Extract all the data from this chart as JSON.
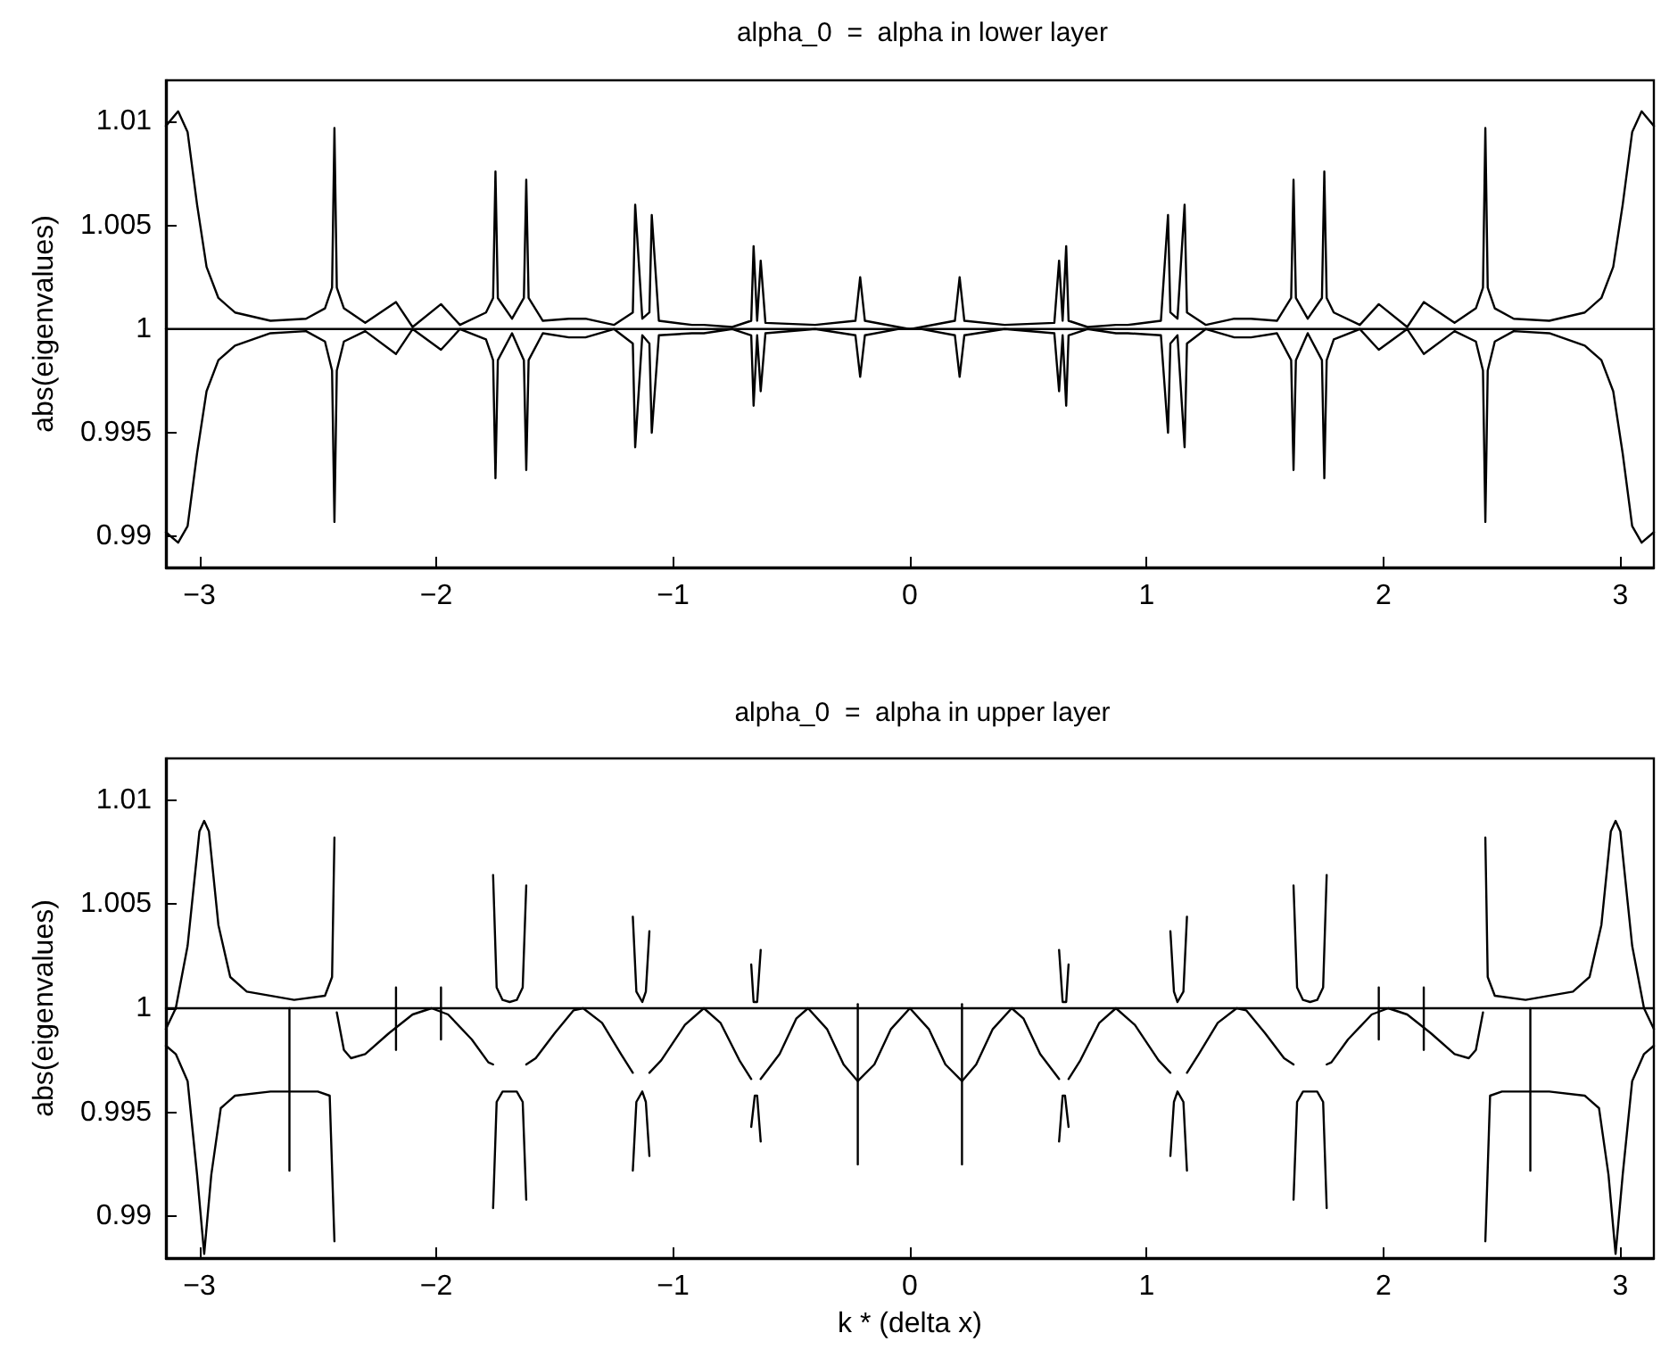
{
  "chart_data": [
    {
      "type": "line",
      "title": "alpha_0  =  alpha in lower layer",
      "ylabel": "abs(eigenvalues)",
      "xlim": [
        -3.1416,
        3.1416
      ],
      "xticks": [
        -3,
        -2,
        -1,
        0,
        1,
        2,
        3
      ],
      "ylim": [
        0.9885,
        1.012
      ],
      "yticks": [
        0.99,
        0.995,
        1,
        1.005,
        1.01
      ],
      "grid": false,
      "marker": "none",
      "line_style": "solid",
      "x": [
        -3.1416,
        -3.09,
        -3.05,
        -3.01,
        -2.97,
        -2.92,
        -2.85,
        -2.7,
        -2.55,
        -2.47,
        -2.44,
        -2.43,
        -2.42,
        -2.39,
        -2.3,
        -2.17,
        -2.1,
        -1.98,
        -1.9,
        -1.79,
        -1.76,
        -1.75,
        -1.74,
        -1.68,
        -1.63,
        -1.62,
        -1.61,
        -1.55,
        -1.44,
        -1.37,
        -1.25,
        -1.17,
        -1.16,
        -1.13,
        -1.1,
        -1.09,
        -1.06,
        -0.92,
        -0.87,
        -0.75,
        -0.67,
        -0.66,
        -0.645,
        -0.63,
        -0.61,
        -0.4,
        -0.23,
        -0.21,
        -0.19,
        -0.05,
        0,
        0.05,
        0.19,
        0.21,
        0.23,
        0.4,
        0.61,
        0.63,
        0.645,
        0.66,
        0.67,
        0.75,
        0.87,
        0.92,
        1.06,
        1.09,
        1.1,
        1.13,
        1.16,
        1.17,
        1.25,
        1.37,
        1.44,
        1.55,
        1.61,
        1.62,
        1.63,
        1.68,
        1.74,
        1.75,
        1.76,
        1.79,
        1.9,
        1.98,
        2.1,
        2.17,
        2.3,
        2.39,
        2.42,
        2.43,
        2.44,
        2.47,
        2.55,
        2.7,
        2.85,
        2.92,
        2.97,
        3.01,
        3.05,
        3.09,
        3.1416
      ],
      "series": [
        {
          "color": "#000000",
          "values": [
            1.0098,
            1.0105,
            1.0095,
            1.006,
            1.003,
            1.0015,
            1.0008,
            1.0004,
            1.0005,
            1.001,
            1.002,
            1.0097,
            1.002,
            1.001,
            1.0003,
            1.0013,
            1.0001,
            1.0012,
            1.0002,
            1.0008,
            1.0015,
            1.0076,
            1.0015,
            1.0005,
            1.0015,
            1.0072,
            1.0015,
            1.0004,
            1.0005,
            1.0005,
            1.0002,
            1.0008,
            1.006,
            1.0005,
            1.0008,
            1.0055,
            1.0004,
            1.0002,
            1.0002,
            1.0001,
            1.0004,
            1.004,
            1.0004,
            1.0033,
            1.0003,
            1.0002,
            1.0004,
            1.0025,
            1.0004,
            1.0001,
            1.0,
            1.0001,
            1.0004,
            1.0025,
            1.0004,
            1.0002,
            1.0003,
            1.0033,
            1.0004,
            1.004,
            1.0004,
            1.0001,
            1.0002,
            1.0002,
            1.0004,
            1.0055,
            1.0008,
            1.0005,
            1.006,
            1.0008,
            1.0002,
            1.0005,
            1.0005,
            1.0004,
            1.0015,
            1.0072,
            1.0015,
            1.0005,
            1.0015,
            1.0076,
            1.0015,
            1.0008,
            1.0002,
            1.0012,
            1.0001,
            1.0013,
            1.0003,
            1.001,
            1.002,
            1.0097,
            1.002,
            1.001,
            1.0005,
            1.0004,
            1.0008,
            1.0015,
            1.003,
            1.006,
            1.0095,
            1.0105,
            1.0098
          ]
        },
        {
          "color": "#000000",
          "values": [
            0.9902,
            0.9897,
            0.9905,
            0.994,
            0.997,
            0.9985,
            0.9992,
            0.9998,
            0.9999,
            0.9994,
            0.998,
            0.9907,
            0.998,
            0.9994,
            0.9999,
            0.9988,
            1.0,
            0.999,
            1.0,
            0.9995,
            0.9985,
            0.9928,
            0.9985,
            0.9998,
            0.9985,
            0.9932,
            0.9985,
            0.9998,
            0.9996,
            0.9996,
            1.0,
            0.9993,
            0.9943,
            0.9997,
            0.9993,
            0.995,
            0.9997,
            0.9998,
            0.9998,
            1.0,
            0.9997,
            0.9963,
            0.9997,
            0.997,
            0.9998,
            1.0,
            0.9997,
            0.9977,
            0.9997,
            1.0,
            1.0,
            1.0,
            0.9997,
            0.9977,
            0.9997,
            1.0,
            0.9998,
            0.997,
            0.9997,
            0.9963,
            0.9997,
            1.0,
            0.9998,
            0.9998,
            0.9997,
            0.995,
            0.9993,
            0.9997,
            0.9943,
            0.9993,
            1.0,
            0.9996,
            0.9996,
            0.9998,
            0.9985,
            0.9932,
            0.9985,
            0.9998,
            0.9985,
            0.9928,
            0.9985,
            0.9995,
            1.0,
            0.999,
            1.0,
            0.9988,
            0.9999,
            0.9994,
            0.998,
            0.9907,
            0.998,
            0.9994,
            0.9999,
            0.9998,
            0.9992,
            0.9985,
            0.997,
            0.994,
            0.9905,
            0.9897,
            0.9902
          ]
        },
        {
          "color": "#000000",
          "x": [
            -3.1416,
            3.1416
          ],
          "values": [
            1,
            1
          ]
        }
      ]
    },
    {
      "type": "line",
      "title": "alpha_0  =  alpha in upper layer",
      "xlabel": "k * (delta x)",
      "ylabel": "abs(eigenvalues)",
      "xlim": [
        -3.1416,
        3.1416
      ],
      "xticks": [
        -3,
        -2,
        -1,
        0,
        1,
        2,
        3
      ],
      "ylim": [
        0.988,
        1.012
      ],
      "yticks": [
        0.99,
        0.995,
        1,
        1.005,
        1.01
      ],
      "grid": false,
      "marker": "none",
      "line_style": "solid",
      "series": [
        {
          "color": "#000000",
          "x": [
            -3.1416,
            -3.1,
            -3.05,
            -3.0,
            -2.98,
            -2.96,
            -2.92,
            -2.87,
            -2.8,
            -2.6,
            -2.47,
            -2.44,
            -2.43,
            -2.42,
            -1.76,
            -1.745,
            -1.72,
            -1.69,
            -1.66,
            -1.635,
            -1.62,
            -1.61,
            -1.17,
            -1.155,
            -1.13,
            -1.115,
            -1.1,
            -1.09,
            -0.67,
            -0.66,
            -0.645,
            -0.63,
            -0.62,
            0.62,
            0.63,
            0.645,
            0.66,
            0.67,
            1.09,
            1.1,
            1.115,
            1.13,
            1.155,
            1.17,
            1.61,
            1.62,
            1.635,
            1.66,
            1.69,
            1.72,
            1.745,
            1.76,
            2.42,
            2.43,
            2.44,
            2.47,
            2.6,
            2.8,
            2.87,
            2.92,
            2.96,
            2.98,
            3.0,
            3.05,
            3.1,
            3.1416
          ],
          "values": [
            0.999,
            1.0,
            1.003,
            1.0085,
            1.009,
            1.0085,
            1.004,
            1.0015,
            1.0008,
            1.0004,
            1.0006,
            1.0015,
            1.0082,
            null,
            1.0064,
            1.001,
            1.0004,
            1.0003,
            1.0004,
            1.001,
            1.0059,
            null,
            1.0044,
            1.0008,
            1.0003,
            1.0008,
            1.0037,
            null,
            1.0021,
            1.0003,
            1.0003,
            1.0028,
            null,
            null,
            1.0028,
            1.0003,
            1.0003,
            1.0021,
            null,
            1.0037,
            1.0008,
            1.0003,
            1.0008,
            1.0044,
            null,
            1.0059,
            1.001,
            1.0004,
            1.0003,
            1.0004,
            1.001,
            1.0064,
            null,
            1.0082,
            1.0015,
            1.0006,
            1.0004,
            1.0008,
            1.0015,
            1.004,
            1.0085,
            1.009,
            1.0085,
            1.003,
            1.0,
            0.999
          ]
        },
        {
          "color": "#000000",
          "x": [
            -3.1416,
            -3.1,
            -3.05,
            -3.01,
            -2.98,
            -2.95,
            -2.91,
            -2.85,
            -2.7,
            -2.5,
            -2.45,
            -2.43,
            -2.42,
            -1.76,
            -1.745,
            -1.72,
            -1.66,
            -1.635,
            -1.62,
            -1.61,
            -1.17,
            -1.155,
            -1.13,
            -1.115,
            -1.1,
            -1.09,
            -0.67,
            -0.655,
            -0.645,
            -0.63,
            -0.62,
            0.62,
            0.63,
            0.645,
            0.655,
            0.67,
            1.09,
            1.1,
            1.115,
            1.13,
            1.155,
            1.17,
            1.61,
            1.62,
            1.635,
            1.66,
            1.72,
            1.745,
            1.76,
            2.42,
            2.43,
            2.45,
            2.5,
            2.7,
            2.85,
            2.91,
            2.95,
            2.98,
            3.01,
            3.05,
            3.1,
            3.1416
          ],
          "values": [
            0.9982,
            0.9978,
            0.9965,
            0.992,
            0.9882,
            0.992,
            0.9952,
            0.9958,
            0.996,
            0.996,
            0.9958,
            0.9888,
            null,
            0.9904,
            0.9955,
            0.996,
            0.996,
            0.9955,
            0.9908,
            null,
            0.9922,
            0.9955,
            0.996,
            0.9955,
            0.9929,
            null,
            0.9943,
            0.9958,
            0.9958,
            0.9936,
            null,
            null,
            0.9936,
            0.9958,
            0.9958,
            0.9943,
            null,
            0.9929,
            0.9955,
            0.996,
            0.9955,
            0.9922,
            null,
            0.9908,
            0.9955,
            0.996,
            0.996,
            0.9955,
            0.9904,
            null,
            0.9888,
            0.9958,
            0.996,
            0.996,
            0.9958,
            0.9952,
            0.992,
            0.9882,
            0.992,
            0.9965,
            0.9978,
            0.9982
          ]
        },
        {
          "color": "#000000",
          "x": [
            -2.42,
            -2.39,
            -2.36,
            -2.3,
            -2.2,
            -2.1,
            -2.02,
            -1.95,
            -1.85,
            -1.78,
            -1.76,
            -1.7,
            -1.62,
            -1.58,
            -1.5,
            -1.42,
            -1.38,
            -1.3,
            -1.22,
            -1.17,
            -1.13,
            -1.1,
            -1.05,
            -0.95,
            -0.87,
            -0.8,
            -0.72,
            -0.67,
            -0.65,
            -0.63,
            -0.55,
            -0.48,
            -0.43,
            -0.35,
            -0.28,
            -0.22,
            -0.15,
            -0.08,
            0,
            0.08,
            0.15,
            0.22,
            0.28,
            0.35,
            0.43,
            0.48,
            0.55,
            0.63,
            0.65,
            0.67,
            0.72,
            0.8,
            0.87,
            0.95,
            1.05,
            1.1,
            1.13,
            1.17,
            1.22,
            1.3,
            1.38,
            1.42,
            1.5,
            1.58,
            1.62,
            1.7,
            1.76,
            1.78,
            1.85,
            1.95,
            2.02,
            2.1,
            2.2,
            2.3,
            2.36,
            2.39,
            2.42
          ],
          "values": [
            0.9998,
            0.998,
            0.9976,
            0.9978,
            0.9988,
            0.9997,
            1.0,
            0.9997,
            0.9985,
            0.9974,
            0.9973,
            null,
            0.9973,
            0.9976,
            0.9988,
            0.9999,
            1.0,
            0.9993,
            0.9978,
            0.9969,
            null,
            0.9969,
            0.9975,
            0.9992,
            1.0,
            0.9993,
            0.9975,
            0.9966,
            null,
            0.9966,
            0.9978,
            0.9995,
            1.0,
            0.999,
            0.9973,
            0.9965,
            0.9973,
            0.999,
            1.0,
            0.999,
            0.9973,
            0.9965,
            0.9973,
            0.999,
            1.0,
            0.9995,
            0.9978,
            0.9966,
            null,
            0.9966,
            0.9975,
            0.9993,
            1.0,
            0.9992,
            0.9975,
            0.9969,
            null,
            0.9969,
            0.9978,
            0.9993,
            1.0,
            0.9999,
            0.9988,
            0.9976,
            0.9973,
            null,
            0.9973,
            0.9974,
            0.9985,
            0.9997,
            1.0,
            0.9997,
            0.9988,
            0.9978,
            0.9976,
            0.998,
            0.9998
          ]
        },
        {
          "color": "#000000",
          "x": [
            -2.62,
            -2.62
          ],
          "values": [
            1.0,
            0.9922
          ]
        },
        {
          "color": "#000000",
          "x": [
            -2.17,
            -2.17
          ],
          "values": [
            1.001,
            0.998
          ]
        },
        {
          "color": "#000000",
          "x": [
            -1.98,
            -1.98
          ],
          "values": [
            1.001,
            0.9985
          ]
        },
        {
          "color": "#000000",
          "x": [
            -0.22,
            -0.22
          ],
          "values": [
            1.0002,
            0.9925
          ]
        },
        {
          "color": "#000000",
          "x": [
            0.22,
            0.22
          ],
          "values": [
            1.0002,
            0.9925
          ]
        },
        {
          "color": "#000000",
          "x": [
            1.98,
            1.98
          ],
          "values": [
            1.001,
            0.9985
          ]
        },
        {
          "color": "#000000",
          "x": [
            2.17,
            2.17
          ],
          "values": [
            1.001,
            0.998
          ]
        },
        {
          "color": "#000000",
          "x": [
            2.62,
            2.62
          ],
          "values": [
            1.0,
            0.9922
          ]
        },
        {
          "color": "#000000",
          "x": [
            -3.1416,
            3.1416
          ],
          "values": [
            1,
            1
          ]
        }
      ]
    }
  ]
}
